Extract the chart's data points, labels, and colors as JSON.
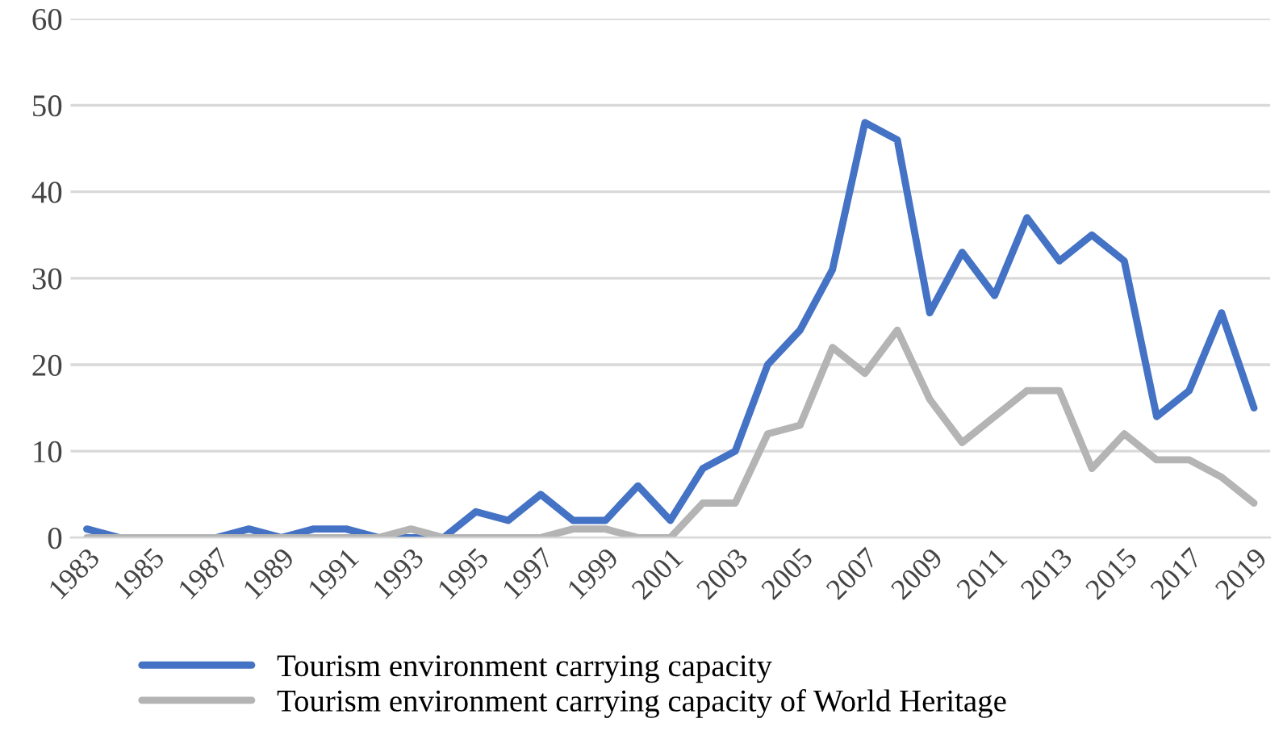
{
  "chart_data": {
    "type": "line",
    "categories": [
      "1983",
      null,
      "1985",
      null,
      "1987",
      null,
      "1989",
      null,
      "1991",
      null,
      "1993",
      null,
      "1995",
      null,
      "1997",
      null,
      "1999",
      null,
      "2001",
      null,
      "2003",
      null,
      "2005",
      null,
      "2007",
      null,
      "2009",
      null,
      "2011",
      null,
      "2013",
      null,
      "2015",
      null,
      "2017",
      null,
      "2019"
    ],
    "series": [
      {
        "name": "Tourism environment carrying capacity",
        "color": "#4472c4",
        "values": [
          1,
          0,
          0,
          0,
          0,
          1,
          0,
          1,
          1,
          0,
          0,
          0,
          3,
          2,
          5,
          2,
          2,
          6,
          2,
          8,
          10,
          20,
          24,
          31,
          48,
          46,
          26,
          33,
          28,
          37,
          32,
          35,
          32,
          14,
          17,
          26,
          15
        ]
      },
      {
        "name": "Tourism environment carrying capacity of World Heritage",
        "color": "#b4b4b4",
        "values": [
          0,
          0,
          0,
          0,
          0,
          0,
          0,
          0,
          0,
          0,
          1,
          0,
          0,
          0,
          0,
          1,
          1,
          0,
          0,
          4,
          4,
          12,
          13,
          22,
          19,
          24,
          16,
          11,
          14,
          17,
          17,
          8,
          12,
          9,
          9,
          7,
          4
        ]
      }
    ],
    "ylim": [
      0,
      60
    ],
    "yticks": [
      0,
      10,
      20,
      30,
      40,
      50,
      60
    ],
    "grid": "y",
    "legend": "bottom",
    "marker": "none",
    "line_style": "solid"
  }
}
